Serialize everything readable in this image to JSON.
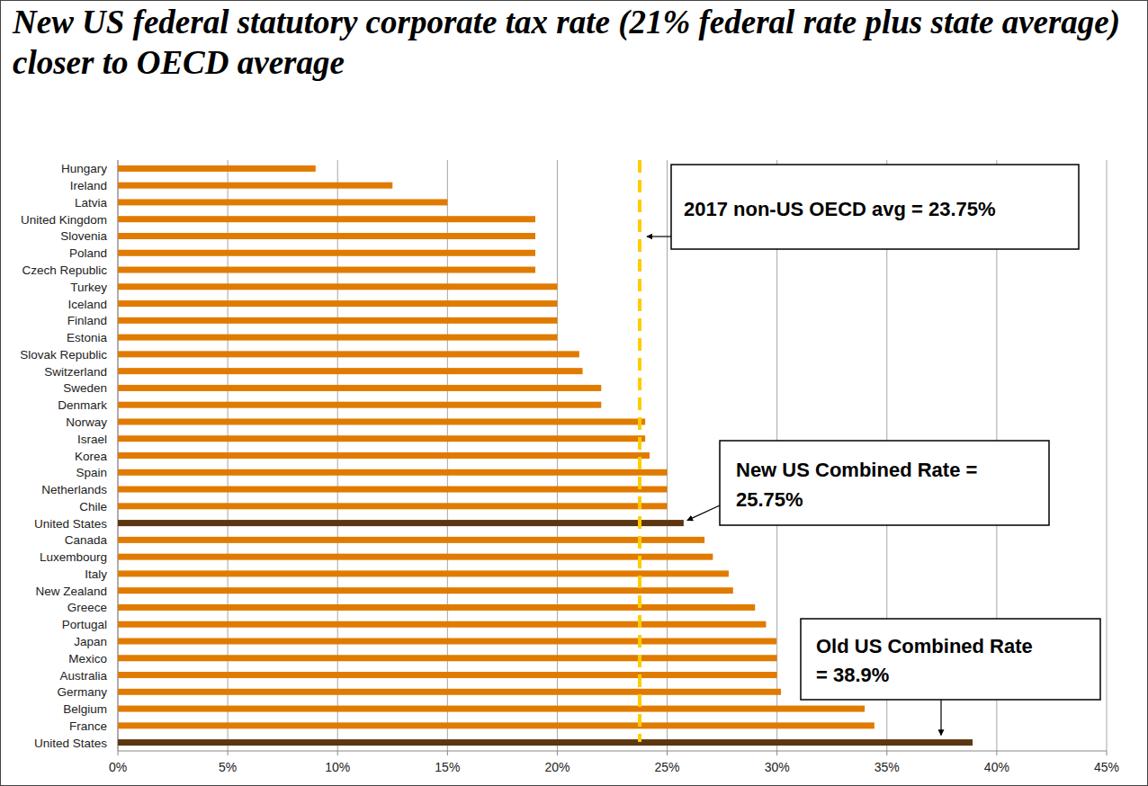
{
  "chart_data": {
    "type": "bar",
    "orientation": "horizontal",
    "title": "New US federal statutory corporate tax rate (21% federal rate plus state average) closer to OECD average",
    "categories": [
      "Hungary",
      "Ireland",
      "Latvia",
      "United Kingdom",
      "Slovenia",
      "Poland",
      "Czech Republic",
      "Turkey",
      "Iceland",
      "Finland",
      "Estonia",
      "Slovak Republic",
      "Switzerland",
      "Sweden",
      "Denmark",
      "Norway",
      "Israel",
      "Korea",
      "Spain",
      "Netherlands",
      "Chile",
      "United States",
      "Canada",
      "Luxembourg",
      "Italy",
      "New Zealand",
      "Greece",
      "Portugal",
      "Japan",
      "Mexico",
      "Australia",
      "Germany",
      "Belgium",
      "France",
      "United States"
    ],
    "values": [
      9,
      12.5,
      15,
      19,
      19,
      19,
      19,
      20,
      20,
      20,
      20,
      21,
      21.15,
      22,
      22,
      24,
      24,
      24.2,
      25,
      25,
      25,
      25.75,
      26.7,
      27.08,
      27.8,
      28,
      29,
      29.5,
      29.97,
      30,
      30,
      30.18,
      33.99,
      34.43,
      38.9
    ],
    "colors": [
      "#e07b00",
      "#e07b00",
      "#e07b00",
      "#e07b00",
      "#e07b00",
      "#e07b00",
      "#e07b00",
      "#e07b00",
      "#e07b00",
      "#e07b00",
      "#e07b00",
      "#e07b00",
      "#e07b00",
      "#e07b00",
      "#e07b00",
      "#e07b00",
      "#e07b00",
      "#e07b00",
      "#e07b00",
      "#e07b00",
      "#e07b00",
      "#5c3511",
      "#e07b00",
      "#e07b00",
      "#e07b00",
      "#e07b00",
      "#e07b00",
      "#e07b00",
      "#e07b00",
      "#e07b00",
      "#e07b00",
      "#e07b00",
      "#e07b00",
      "#e07b00",
      "#5c3511"
    ],
    "xlim": [
      0,
      45
    ],
    "xticks": [
      {
        "value": 0,
        "label": "0%"
      },
      {
        "value": 5,
        "label": "5%"
      },
      {
        "value": 10,
        "label": "10%"
      },
      {
        "value": 15,
        "label": "15%"
      },
      {
        "value": 20,
        "label": "20%"
      },
      {
        "value": 25,
        "label": "25%"
      },
      {
        "value": 30,
        "label": "30%"
      },
      {
        "value": 35,
        "label": "35%"
      },
      {
        "value": 40,
        "label": "40%"
      },
      {
        "value": 45,
        "label": "45%"
      }
    ],
    "grid": true,
    "reference_line": {
      "value": 23.75,
      "color": "#ffcc00",
      "line_style": "dashed"
    },
    "annotations": [
      {
        "lines": [
          "2017 non-US OECD avg = 23.75%"
        ]
      },
      {
        "lines": [
          "New US Combined Rate =",
          "25.75%"
        ]
      },
      {
        "lines": [
          "Old US Combined Rate",
          "= 38.9%"
        ]
      }
    ]
  }
}
